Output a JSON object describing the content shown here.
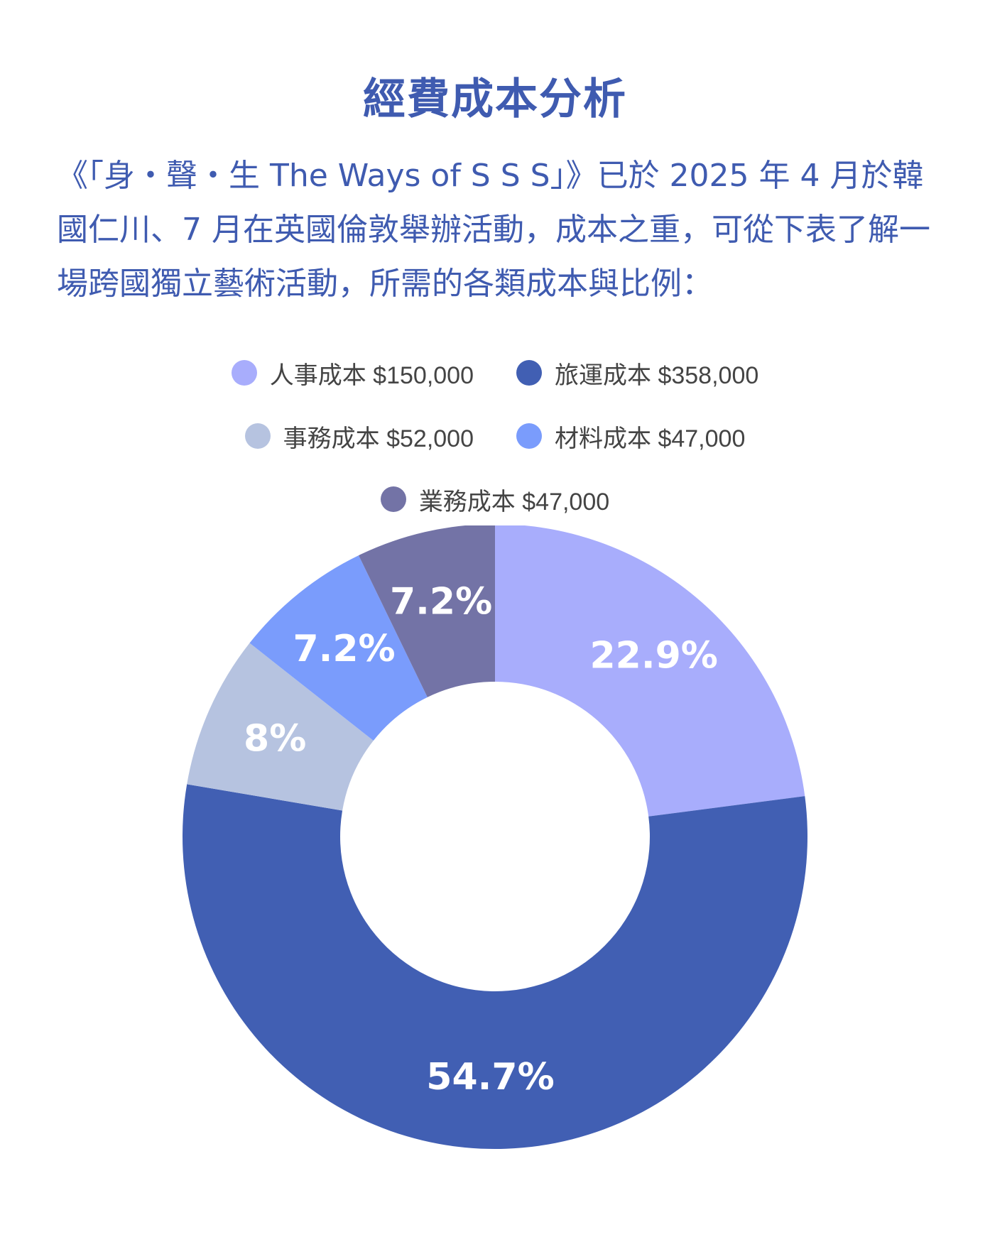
{
  "title": "經費成本分析",
  "intro": "《「身・聲・生 The Ways of S S S」》已於 2025 年 4 月於韓國仁川、7 月在英國倫敦舉辦活動，成本之重，可從下表了解一場跨國獨立藝術活動，所需的各類成本與比例：",
  "legend": [
    {
      "label": "人事成本 $150,000",
      "color": "#a8adfc"
    },
    {
      "label": "旅運成本 $358,000",
      "color": "#415fb3"
    },
    {
      "label": "事務成本 $52,000",
      "color": "#b6c3e0"
    },
    {
      "label": "材料成本 $47,000",
      "color": "#7a9cfc"
    },
    {
      "label": "業務成本 $47,000",
      "color": "#7373a6"
    }
  ],
  "chart_data": {
    "type": "pie",
    "donut": true,
    "categories": [
      "人事成本",
      "旅運成本",
      "事務成本",
      "材料成本",
      "業務成本"
    ],
    "values": [
      150000,
      358000,
      52000,
      47000,
      47000
    ],
    "percent_labels": [
      "22.9%",
      "54.7%",
      "8%",
      "7.2%",
      "7.2%"
    ],
    "colors": [
      "#a8adfc",
      "#415fb3",
      "#b6c3e0",
      "#7a9cfc",
      "#7373a6"
    ],
    "legend_position": "top"
  }
}
